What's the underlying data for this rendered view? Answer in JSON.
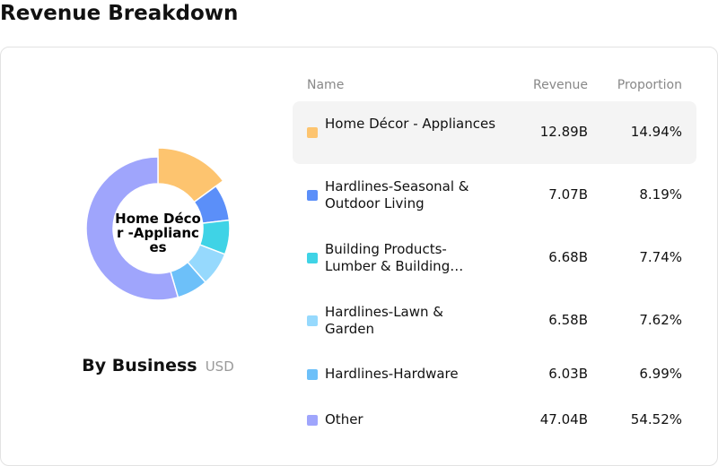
{
  "page": {
    "title": "Revenue Breakdown"
  },
  "chart": {
    "center_label": "Home Décor -Appliances",
    "caption_title": "By Business",
    "caption_unit": "USD"
  },
  "table": {
    "headers": {
      "name": "Name",
      "revenue": "Revenue",
      "proportion": "Proportion"
    }
  },
  "chart_data": {
    "type": "pie",
    "title": "",
    "categories": [
      "Home Décor - Appliances",
      "Hardlines-Seasonal & Outdoor Living",
      "Building Products-Lumber & Building…",
      "Hardlines-Lawn & Garden",
      "Hardlines-Hardware",
      "Other"
    ],
    "revenue_labels": [
      "12.89B",
      "7.07B",
      "6.68B",
      "6.58B",
      "6.03B",
      "47.04B"
    ],
    "values": [
      12.89,
      7.07,
      6.68,
      6.58,
      6.03,
      47.04
    ],
    "proportion_labels": [
      "14.94%",
      "8.19%",
      "7.74%",
      "7.62%",
      "6.99%",
      "54.52%"
    ],
    "colors": [
      "#fdc46f",
      "#5b8ff9",
      "#3fd3e6",
      "#96d9fd",
      "#6dc0f9",
      "#9fa5fc"
    ],
    "highlighted_index": 0,
    "legend": "right table"
  }
}
